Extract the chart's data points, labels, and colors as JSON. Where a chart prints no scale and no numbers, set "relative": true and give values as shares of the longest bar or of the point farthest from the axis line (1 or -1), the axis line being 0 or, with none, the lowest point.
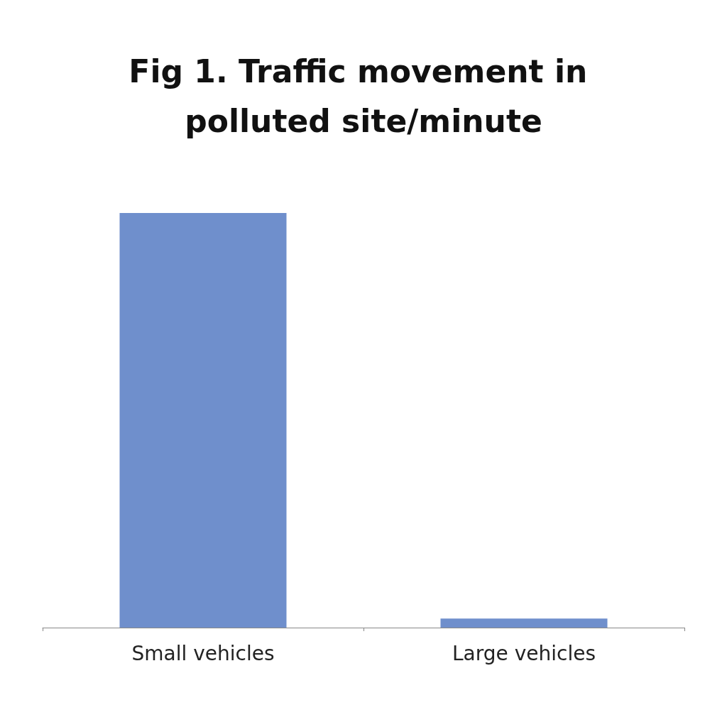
{
  "chart_data": {
    "type": "bar",
    "title": "Fig 1. Traffic movement in polluted site/minute",
    "categories": [
      "Small vehicles",
      "Large vehicles"
    ],
    "values": [
      1,
      0.022
    ],
    "color": "#6f8fcc",
    "relative": true
  }
}
